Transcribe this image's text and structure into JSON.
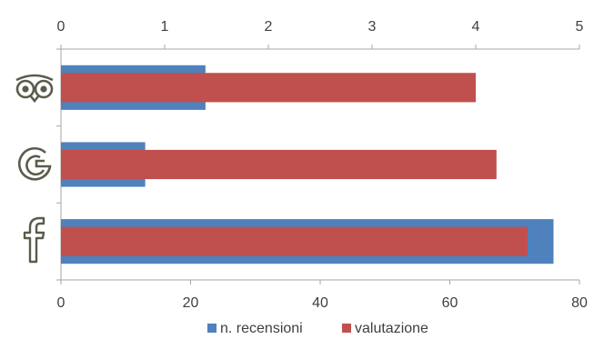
{
  "chart_data": {
    "type": "bar",
    "orientation": "horizontal",
    "categories": [
      "tripadvisor",
      "google",
      "facebook"
    ],
    "category_icons": [
      "tripadvisor-owl-icon",
      "google-g-icon",
      "facebook-f-icon"
    ],
    "series": [
      {
        "name": "n. recensioni",
        "values": [
          22.3,
          13.0,
          76.0
        ],
        "axis": "bottom",
        "color": "#4f81bd"
      },
      {
        "name": "valutazione",
        "values": [
          4.0,
          4.2,
          4.5
        ],
        "axis": "top",
        "color": "#c0504d"
      }
    ],
    "top_axis": {
      "range": [
        0,
        5
      ],
      "ticks": [
        "0",
        "1",
        "2",
        "3",
        "4",
        "5"
      ]
    },
    "bottom_axis": {
      "range": [
        0,
        80
      ],
      "ticks": [
        "0",
        "20",
        "40",
        "60",
        "80"
      ]
    },
    "legend": {
      "position": "bottom",
      "entries": [
        "n. recensioni",
        "valutazione"
      ]
    },
    "grid": false
  }
}
